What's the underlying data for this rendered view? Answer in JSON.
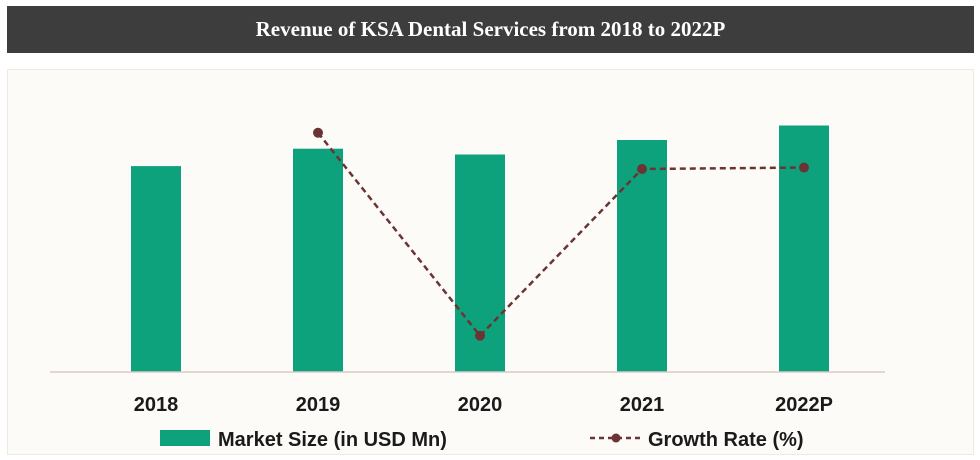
{
  "chart_data": {
    "type": "bar",
    "title": "Revenue of KSA Dental Services from 2018 to 2022P",
    "categories": [
      "2018",
      "2019",
      "2020",
      "2021",
      "2022P"
    ],
    "series": [
      {
        "name": "Market Size (in USD Mn)",
        "type": "bar",
        "values": [
          71,
          77,
          75,
          80,
          85
        ],
        "color": "#0ea27c"
      },
      {
        "name": "Growth Rate (%)",
        "type": "line",
        "style": "dashed",
        "values": [
          null,
          11.5,
          -2.5,
          9.0,
          9.1
        ],
        "color": "#6b3434"
      }
    ],
    "bar_axis": {
      "ylim": [
        0,
        100
      ]
    },
    "line_axis": {
      "ylim": [
        -5,
        15
      ]
    },
    "grid": false,
    "legend_position": "bottom"
  }
}
